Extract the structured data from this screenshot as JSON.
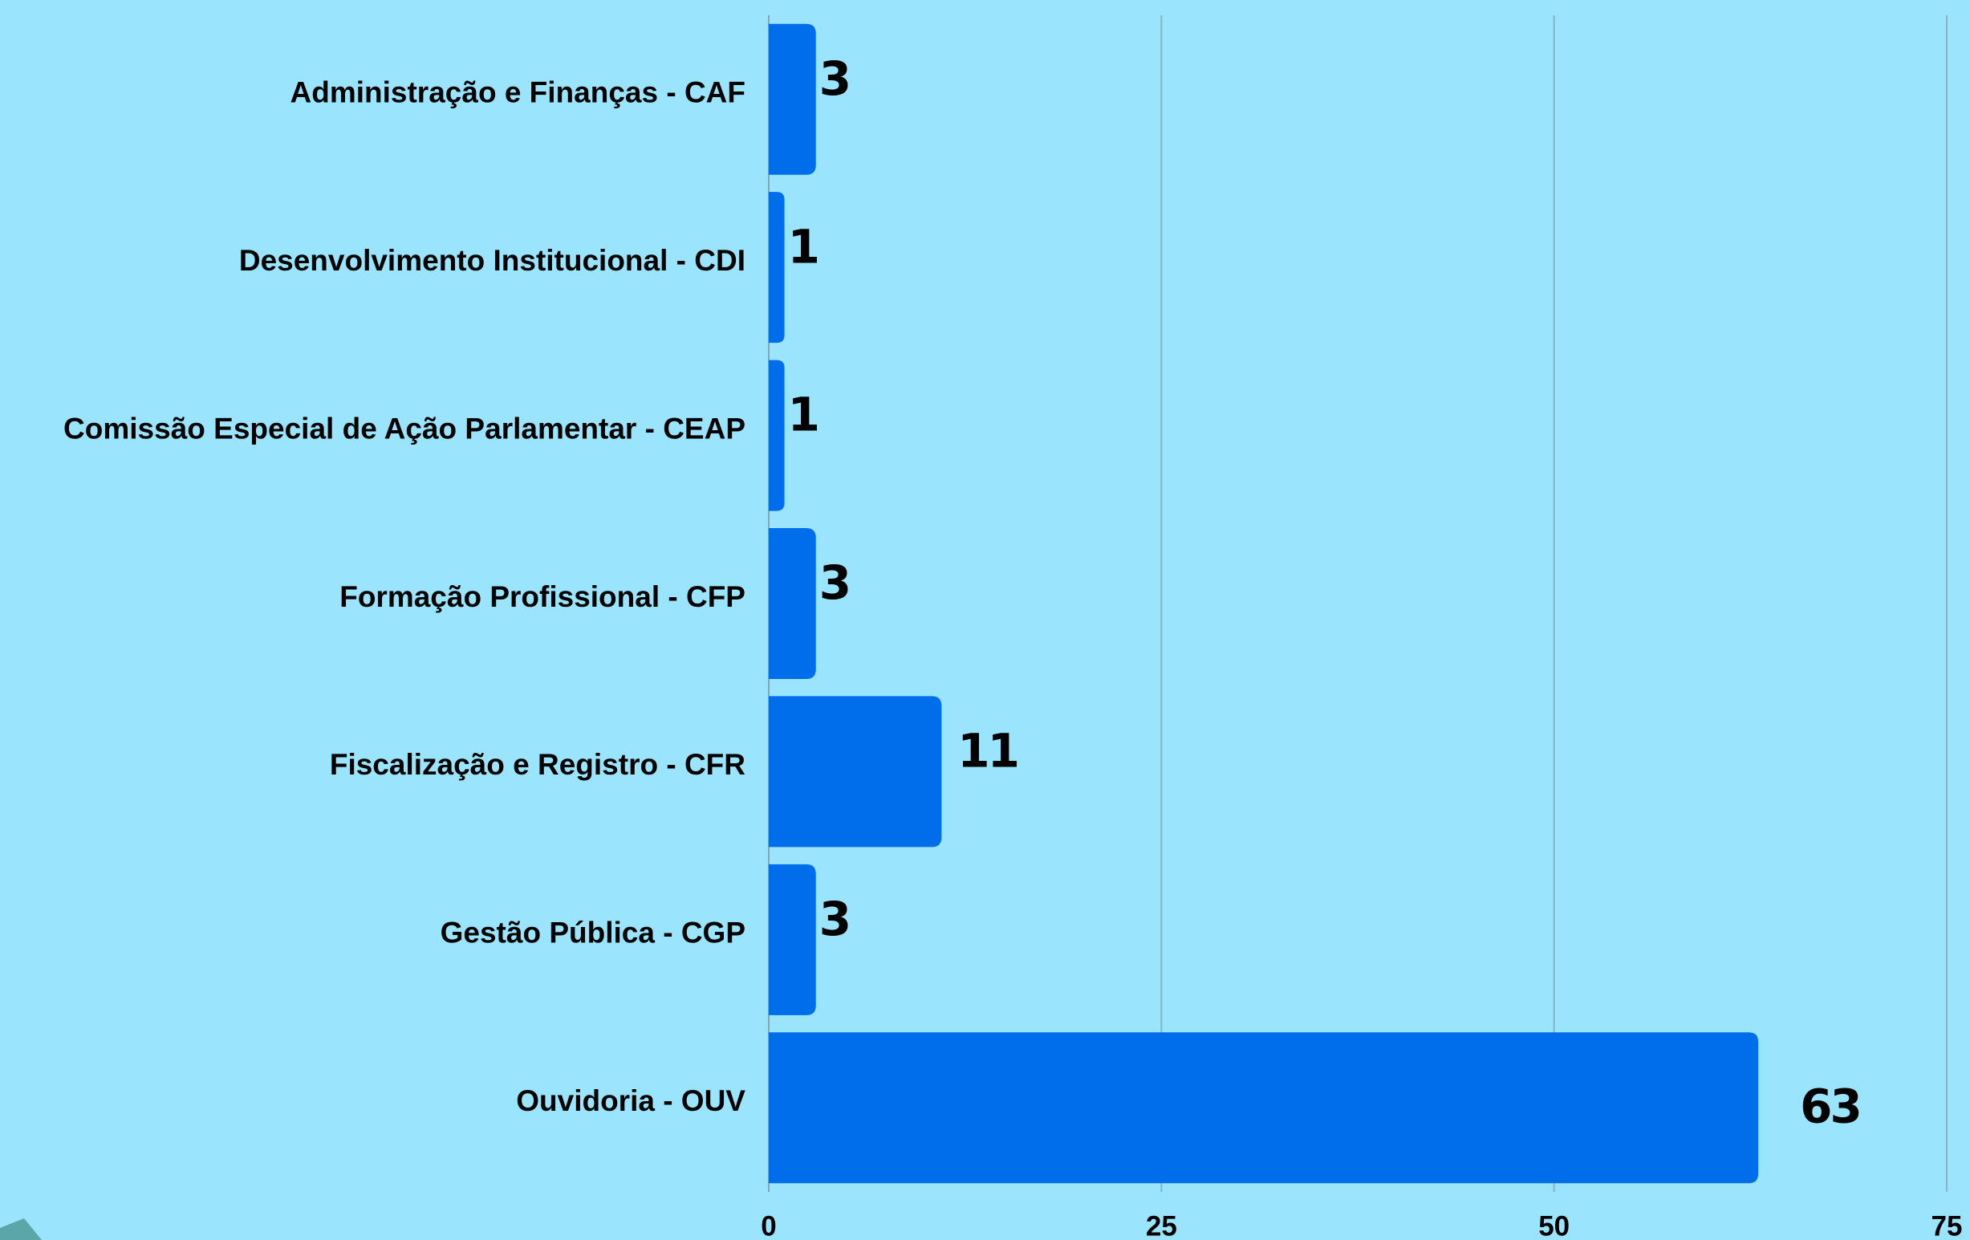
{
  "chart_data": {
    "type": "bar",
    "orientation": "horizontal",
    "categories": [
      "Administração e Finanças - CAF",
      "Desenvolvimento Institucional - CDI",
      "Comissão Especial de Ação Parlamentar - CEAP",
      "Formação Profissional - CFP",
      "Fiscalização e Registro - CFR",
      "Gestão Pública - CGP",
      "Ouvidoria - OUV"
    ],
    "values": [
      3,
      1,
      1,
      3,
      11,
      3,
      63
    ],
    "color": "#006eea",
    "xlim": [
      0,
      75
    ],
    "xticks": [
      0,
      25,
      50,
      75
    ],
    "grid": true
  }
}
